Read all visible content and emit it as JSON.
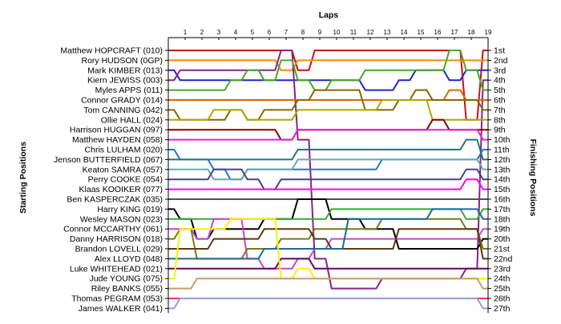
{
  "chart_data": {
    "type": "line",
    "title": "Laps",
    "ylabel_left": "Starting Positions",
    "ylabel_right": "Finishing Positions",
    "laps": [
      1,
      2,
      3,
      4,
      5,
      6,
      7,
      8,
      9,
      10,
      11,
      12,
      13,
      14,
      15,
      16,
      17,
      18,
      19
    ],
    "finishing_labels": [
      "1st",
      "2nd",
      "3rd",
      "4th",
      "5th",
      "6th",
      "7th",
      "8th",
      "9th",
      "10th",
      "11th",
      "12th",
      "13th",
      "14th",
      "15th",
      "16th",
      "17th",
      "18th",
      "19th",
      "20th",
      "21st",
      "22nd",
      "23rd",
      "24th",
      "25th",
      "26th",
      "27th"
    ],
    "grid": false,
    "series": [
      {
        "name": "Matthew HOPCRAFT (010)",
        "color": "#cc1111",
        "positions": [
          1,
          1,
          1,
          1,
          1,
          1,
          1,
          1,
          3,
          1,
          1,
          1,
          1,
          1,
          1,
          1,
          1,
          1,
          8,
          1
        ]
      },
      {
        "name": "Rory HUDSON (0GP)",
        "color": "#ff8800",
        "positions": [
          2,
          2,
          2,
          2,
          2,
          2,
          2,
          3,
          2,
          2,
          2,
          2,
          2,
          2,
          2,
          2,
          2,
          2,
          2,
          2
        ]
      },
      {
        "name": "Mark KIMBER (013)",
        "color": "#2222cc",
        "positions": [
          3,
          4,
          4,
          4,
          4,
          4,
          4,
          4,
          4,
          4,
          4,
          4,
          5,
          5,
          4,
          3,
          3,
          4,
          3,
          3
        ]
      },
      {
        "name": "Kiern JEWISS (003)",
        "color": "#882288",
        "positions": [
          4,
          3,
          3,
          3,
          3,
          3,
          3,
          1,
          10,
          22,
          25,
          25,
          25,
          24,
          24,
          24,
          24,
          24,
          23,
          4
        ]
      },
      {
        "name": "Myles APPS (011)",
        "color": "#44aa22",
        "positions": [
          5,
          5,
          5,
          5,
          4,
          3,
          4,
          2,
          4,
          5,
          4,
          4,
          3,
          3,
          3,
          3,
          3,
          1,
          3,
          5
        ]
      },
      {
        "name": "Connor GRADY (014)",
        "color": "#dd6600",
        "positions": [
          6,
          6,
          6,
          6,
          6,
          6,
          6,
          6,
          6,
          6,
          6,
          6,
          6,
          6,
          6,
          6,
          6,
          5,
          6,
          6
        ]
      },
      {
        "name": "Tom CANNING (042)",
        "color": "#886600",
        "positions": [
          7,
          8,
          8,
          8,
          7,
          8,
          7,
          7,
          6,
          5,
          5,
          5,
          7,
          7,
          6,
          5,
          6,
          6,
          6,
          7
        ]
      },
      {
        "name": "Ollie HALL (024)",
        "color": "#aaaa00",
        "positions": [
          8,
          8,
          8,
          7,
          7,
          8,
          8,
          8,
          7,
          7,
          7,
          7,
          7,
          6,
          6,
          6,
          8,
          8,
          8,
          8
        ]
      },
      {
        "name": "Harrison HUGGAN (097)",
        "color": "#880000",
        "positions": [
          9,
          9,
          9,
          9,
          9,
          9,
          9,
          10,
          9,
          9,
          9,
          9,
          9,
          9,
          9,
          9,
          8,
          9,
          9,
          9
        ]
      },
      {
        "name": "Matthew HAYDEN (058)",
        "color": "#dd22dd",
        "positions": [
          10,
          10,
          10,
          10,
          10,
          10,
          10,
          10,
          9,
          9,
          9,
          9,
          9,
          9,
          9,
          9,
          9,
          9,
          9,
          10
        ]
      },
      {
        "name": "Chris LULHAM (020)",
        "color": "#2277cc",
        "positions": [
          11,
          12,
          12,
          13,
          14,
          13,
          13,
          13,
          13,
          13,
          13,
          13,
          13,
          12,
          12,
          12,
          12,
          12,
          12,
          11
        ]
      },
      {
        "name": "Jenson BUTTERFIELD (067)",
        "color": "#227777",
        "positions": [
          12,
          12,
          12,
          12,
          12,
          12,
          12,
          12,
          11,
          11,
          11,
          11,
          11,
          11,
          11,
          11,
          11,
          11,
          10,
          12
        ]
      },
      {
        "name": "Keaton SAMRA (057)",
        "color": "#66aaaa",
        "positions": [
          13,
          13,
          13,
          14,
          14,
          13,
          13,
          13,
          12,
          12,
          12,
          12,
          12,
          12,
          12,
          12,
          12,
          12,
          12,
          13
        ]
      },
      {
        "name": "Perry COOKE (054)",
        "color": "#444488",
        "positions": [
          14,
          14,
          14,
          13,
          13,
          14,
          15,
          14,
          14,
          14,
          14,
          14,
          14,
          14,
          14,
          14,
          14,
          14,
          13,
          14
        ]
      },
      {
        "name": "Klaas KOOIKER (077)",
        "color": "#ff00ff",
        "positions": [
          15,
          15,
          15,
          15,
          15,
          15,
          15,
          15,
          15,
          15,
          15,
          15,
          15,
          15,
          15,
          15,
          15,
          15,
          14,
          15
        ]
      },
      {
        "name": "Ben KASPERCZAK (035)",
        "color": "#445555",
        "positions": [
          16,
          16,
          16,
          16,
          16,
          16,
          16,
          16,
          16,
          16,
          16,
          16,
          16,
          16,
          16,
          16,
          16,
          16,
          16,
          16
        ]
      },
      {
        "name": "Harry KING (019)",
        "color": "#000000",
        "positions": [
          17,
          18,
          20,
          19,
          19,
          19,
          18,
          18,
          16,
          16,
          18,
          18,
          19,
          19,
          21,
          21,
          21,
          21,
          21,
          20
        ]
      },
      {
        "name": "Wesley MASON (023)",
        "color": "#33aa33",
        "positions": [
          18,
          18,
          18,
          18,
          18,
          18,
          18,
          18,
          18,
          18,
          17,
          17,
          17,
          17,
          17,
          17,
          17,
          17,
          18,
          17
        ]
      },
      {
        "name": "Connor MCCARTHY (061)",
        "color": "#cc44cc",
        "positions": [
          19,
          19,
          20,
          18,
          18,
          22,
          23,
          23,
          22,
          21,
          20,
          20,
          20,
          20,
          20,
          20,
          20,
          20,
          20,
          19
        ]
      },
      {
        "name": "Danny HARRISON (018)",
        "color": "#7a7a1a",
        "positions": [
          20,
          19,
          22,
          22,
          22,
          21,
          21,
          20,
          20,
          19,
          19,
          19,
          19,
          18,
          18,
          18,
          18,
          18,
          19,
          21
        ]
      },
      {
        "name": "Brandon LOVELL (029)",
        "color": "#5a3a10",
        "positions": [
          21,
          21,
          21,
          20,
          20,
          20,
          19,
          19,
          19,
          20,
          21,
          21,
          21,
          21,
          19,
          19,
          19,
          19,
          19,
          22
        ]
      },
      {
        "name": "Alex LLOYD (048)",
        "color": "#1a6a9a",
        "positions": [
          22,
          22,
          22,
          22,
          22,
          22,
          21,
          21,
          21,
          21,
          21,
          18,
          18,
          18,
          18,
          18,
          17,
          17,
          17,
          18
        ]
      },
      {
        "name": "Luke WHITEHEAD (021)",
        "color": "#660066",
        "positions": [
          23,
          23,
          23,
          23,
          23,
          23,
          23,
          22,
          22,
          23,
          23,
          23,
          23,
          23,
          23,
          23,
          23,
          23,
          23,
          23
        ]
      },
      {
        "name": "Jude YOUNG (075)",
        "color": "#ffee00",
        "positions": [
          24,
          19,
          19,
          19,
          18,
          18,
          18,
          24,
          23,
          24,
          24,
          24,
          24,
          24,
          24,
          24,
          24,
          24,
          24,
          24
        ]
      },
      {
        "name": "Riley BANKS (055)",
        "color": "#cc9966",
        "positions": [
          25,
          25,
          24,
          24,
          24,
          24,
          24,
          24,
          24,
          24,
          24,
          24,
          24,
          24,
          24,
          24,
          24,
          24,
          24,
          25
        ]
      },
      {
        "name": "Thomas PEGRAM (053)",
        "color": "#ff3366",
        "positions": [
          26,
          26,
          26,
          26,
          26,
          26,
          26,
          26,
          26,
          26,
          26,
          26,
          26,
          26,
          26,
          26,
          26,
          26,
          26,
          26
        ]
      },
      {
        "name": "James WALKER (041)",
        "color": "#9999dd",
        "positions": [
          27,
          26,
          26,
          26,
          26,
          26,
          26,
          26,
          26,
          26,
          26,
          26,
          26,
          26,
          26,
          26,
          26,
          26,
          26,
          27
        ]
      }
    ]
  }
}
